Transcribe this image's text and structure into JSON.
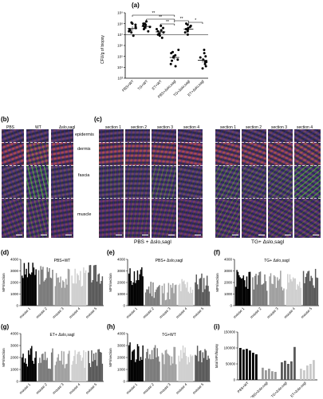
{
  "panel_labels": {
    "a": "(a)",
    "b": "(b)",
    "c": "(c)",
    "d": "(d)",
    "e": "(e)",
    "f": "(f)",
    "g": "(g)",
    "h": "(h)",
    "i": "(i)"
  },
  "panel_a": {
    "ylabel": "CFU/g of biopsy",
    "yticks": [
      "10⁹",
      "10⁸",
      "10⁷",
      "10⁶",
      "10⁵",
      "10⁴",
      "10³"
    ],
    "categories": [
      "PBS+WT",
      "TG+WT",
      "ET+WT",
      "PBS+Δslo,sagl",
      "TG+Δslo,sagl",
      "ET+Δslo,sagl"
    ],
    "sig": [
      "**",
      "**",
      "**",
      "**",
      "*"
    ]
  },
  "panel_b": {
    "cols": [
      "PBS",
      "WT",
      "Δslo,sagl"
    ]
  },
  "panel_c": {
    "sections": [
      "section 1",
      "section 2",
      "section 3",
      "section 4"
    ],
    "label_left": "PBS + Δslo,sagl",
    "label_right": "TG+ Δslo,sagl"
  },
  "layers": [
    "epidermis",
    "dermis",
    "fascia",
    "muscle"
  ],
  "small_common": {
    "ylabel": "MFI/section",
    "yticks": [
      "4000",
      "3000",
      "2000",
      "1000",
      "0"
    ],
    "xticks": [
      "mouse 1",
      "mouse 2",
      "mouse 3",
      "mouse 4",
      "mouse 5"
    ]
  },
  "panel_titles": {
    "d": "PBS+WT",
    "e": "PBS+ Δslo,sagl",
    "f": "TG+ Δslo,sagl",
    "g": "ET+ Δslo,sagl",
    "h": "TG+WT"
  },
  "panel_i": {
    "ylabel": "total MFI/biopsy",
    "yticks": [
      "150000",
      "100000",
      "50000",
      "0"
    ],
    "xticks": [
      "PBS+WT",
      "PBS+Δslo,sagl",
      "TG+Δslo,sagl",
      "ET+Δslo,sagl"
    ]
  },
  "chart_data": [
    {
      "type": "scatter",
      "panel": "a",
      "categories": [
        "PBS+WT",
        "TG+WT",
        "ET+WT",
        "PBS+Δslo,sagl",
        "TG+Δslo,sagl",
        "ET+Δslo,sagl"
      ],
      "yscale": "log",
      "ylim": [
        1000,
        1000000000
      ],
      "points_log10": [
        [
          7.9,
          7.6,
          7.3,
          8.1,
          7.7,
          7.5,
          7.2,
          8.0,
          6.9,
          7.4
        ],
        [
          8.0,
          7.7,
          7.9,
          7.5,
          8.2,
          7.6,
          7.8,
          7.3,
          7.7,
          8.0
        ],
        [
          7.5,
          7.2,
          7.0,
          7.6,
          6.9,
          7.3,
          7.8,
          7.1,
          6.7,
          7.4
        ],
        [
          5.3,
          4.6,
          5.0,
          4.3,
          5.6,
          4.9,
          4.1,
          5.1,
          4.7,
          5.4
        ],
        [
          7.9,
          7.6,
          7.3,
          7.8,
          7.0,
          7.4,
          8.0,
          7.5,
          7.7,
          7.2
        ],
        [
          4.9,
          5.3,
          4.5,
          4.1,
          5.0,
          4.3,
          5.6,
          4.7,
          3.9,
          4.5
        ]
      ],
      "means_log10": [
        7.55,
        7.75,
        7.25,
        4.9,
        7.5,
        4.65
      ]
    },
    {
      "type": "bar",
      "panel": "d",
      "ylim": [
        0,
        4000
      ],
      "mouse_levels": [
        2900,
        2700,
        2400,
        2500,
        2700
      ]
    },
    {
      "type": "bar",
      "panel": "e",
      "ylim": [
        0,
        4000
      ],
      "mouse_levels": [
        2500,
        1500,
        1300,
        1600,
        2000
      ]
    },
    {
      "type": "bar",
      "panel": "f",
      "ylim": [
        0,
        4000
      ],
      "mouse_levels": [
        2300,
        2100,
        2200,
        2000,
        2300
      ]
    },
    {
      "type": "bar",
      "panel": "g",
      "ylim": [
        0,
        4000
      ],
      "mouse_levels": [
        2100,
        1900,
        1700,
        1900,
        2000
      ]
    },
    {
      "type": "bar",
      "panel": "h",
      "ylim": [
        0,
        4000
      ],
      "mouse_levels": [
        2400,
        2300,
        2200,
        2100,
        2300
      ]
    },
    {
      "type": "bar",
      "panel": "i",
      "ylim": [
        0,
        150000
      ],
      "values": [
        100000,
        95000,
        97000,
        92000,
        85000,
        80000,
        0,
        38000,
        30000,
        35000,
        27000,
        25000,
        0,
        55000,
        60000,
        50000,
        58000,
        103000,
        0,
        35000,
        30000,
        45000,
        50000,
        62000
      ]
    }
  ]
}
